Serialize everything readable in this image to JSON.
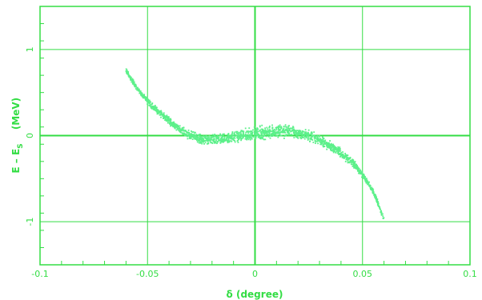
{
  "chart_data": {
    "type": "scatter",
    "xlabel": "δ (degree)",
    "ylabel": "E – E",
    "ylabel_subscript": "S",
    "ylabel_unit": "(MeV)",
    "xlim": [
      -0.1,
      0.1
    ],
    "ylim": [
      -1.5,
      1.5
    ],
    "x_ticks": [
      -0.1,
      -0.05,
      0,
      0.05,
      0.1
    ],
    "x_tick_labels": [
      "-0.1",
      "-0.05",
      "0",
      "0.05",
      "0.1"
    ],
    "y_ticks": [
      -1,
      0,
      1
    ],
    "y_tick_labels": [
      "-1",
      "0",
      "1"
    ],
    "grid": true,
    "legend": "none",
    "series": [
      {
        "point_count": 1800,
        "centerline": [
          {
            "x": -0.06,
            "y": 0.76
          },
          {
            "x": -0.055,
            "y": 0.55
          },
          {
            "x": -0.05,
            "y": 0.4
          },
          {
            "x": -0.045,
            "y": 0.28
          },
          {
            "x": -0.04,
            "y": 0.17
          },
          {
            "x": -0.035,
            "y": 0.07
          },
          {
            "x": -0.03,
            "y": 0.0
          },
          {
            "x": -0.025,
            "y": -0.04
          },
          {
            "x": -0.02,
            "y": -0.05
          },
          {
            "x": -0.015,
            "y": -0.04
          },
          {
            "x": -0.01,
            "y": -0.02
          },
          {
            "x": -0.005,
            "y": 0.0
          },
          {
            "x": 0.0,
            "y": 0.02
          },
          {
            "x": 0.005,
            "y": 0.04
          },
          {
            "x": 0.01,
            "y": 0.05
          },
          {
            "x": 0.015,
            "y": 0.05
          },
          {
            "x": 0.02,
            "y": 0.03
          },
          {
            "x": 0.025,
            "y": 0.0
          },
          {
            "x": 0.03,
            "y": -0.05
          },
          {
            "x": 0.035,
            "y": -0.12
          },
          {
            "x": 0.04,
            "y": -0.2
          },
          {
            "x": 0.045,
            "y": -0.3
          },
          {
            "x": 0.05,
            "y": -0.45
          },
          {
            "x": 0.055,
            "y": -0.65
          },
          {
            "x": 0.06,
            "y": -0.97
          }
        ],
        "spread": [
          {
            "x": -0.06,
            "dy": 0.04
          },
          {
            "x": -0.04,
            "dy": 0.06
          },
          {
            "x": -0.02,
            "dy": 0.08
          },
          {
            "x": 0.0,
            "dy": 0.1
          },
          {
            "x": 0.02,
            "dy": 0.09
          },
          {
            "x": 0.04,
            "dy": 0.07
          },
          {
            "x": 0.06,
            "dy": 0.04
          }
        ]
      }
    ]
  },
  "colors": {
    "axis_green": "#33dd44",
    "point_green": "#5cf08a",
    "background": "#ffffff"
  },
  "footer": {
    "left_note": "",
    "right_note": ""
  }
}
